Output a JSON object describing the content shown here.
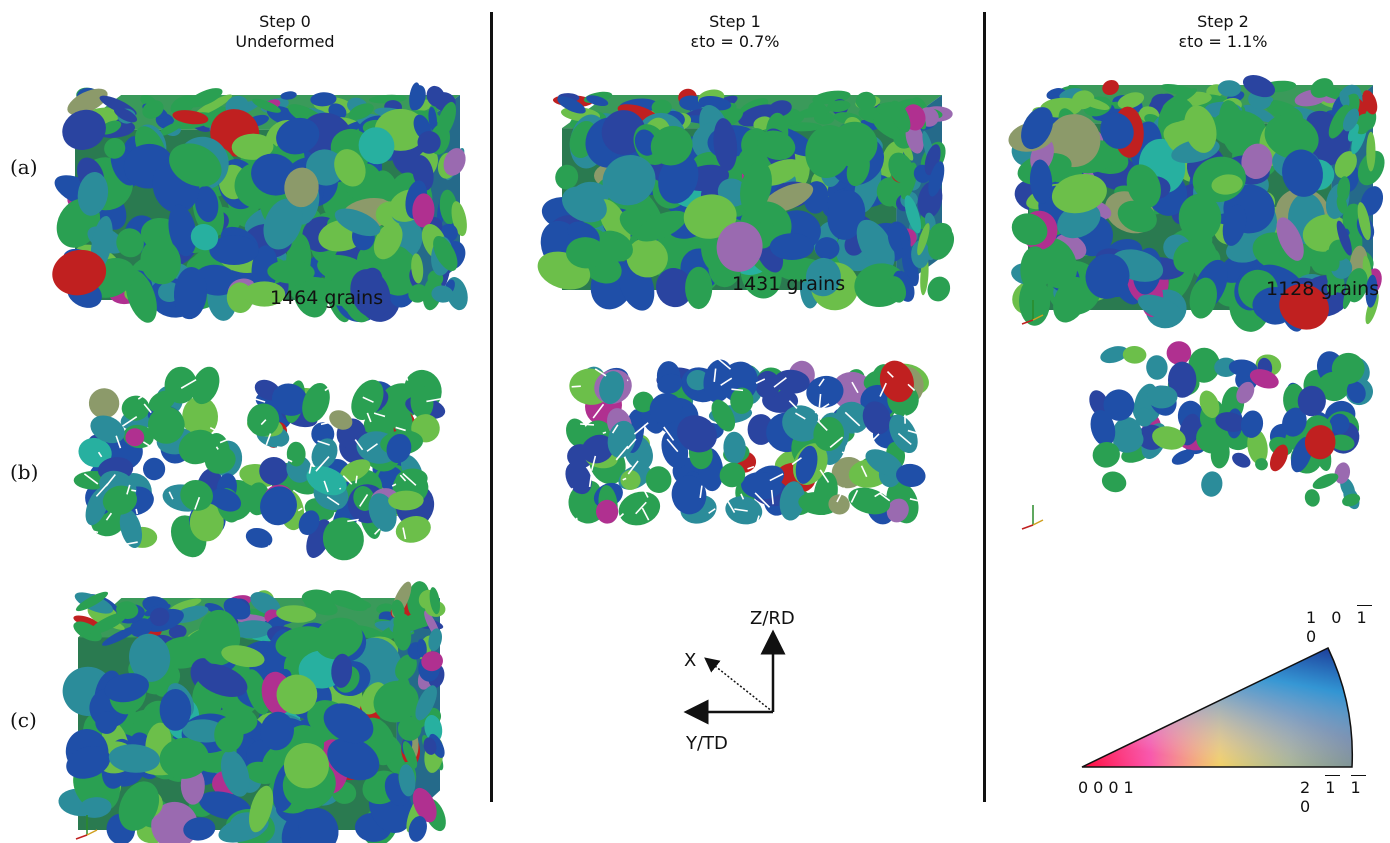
{
  "columns": [
    {
      "title": "Step 0",
      "subtitle": "Undeformed",
      "grain_count": "1464 grains"
    },
    {
      "title": "Step 1",
      "subtitle": "εto = 0.7%",
      "grain_count": "1431 grains"
    },
    {
      "title": "Step 2",
      "subtitle": "εto = 1.1%",
      "grain_count": "1128 grains"
    }
  ],
  "rows": [
    {
      "label": "(a)"
    },
    {
      "label": "(b)"
    },
    {
      "label": "(c)"
    }
  ],
  "axes": {
    "z": "Z/RD",
    "x": "X",
    "y": "Y/TD"
  },
  "inverse_pole_figure": {
    "corners": [
      "0001",
      "2110",
      "1010"
    ],
    "gradient_colors": {
      "0001": "#ff0000",
      "2110": "#2e9e3a",
      "1010": "#1a2a8c"
    }
  },
  "grain_palette": [
    "#2aa052",
    "#1f4fa8",
    "#2b8c9a",
    "#6cbf4a",
    "#2a44a0",
    "#b03090",
    "#c02020",
    "#9a6ab0",
    "#8c9a6a",
    "#27b0a0"
  ]
}
